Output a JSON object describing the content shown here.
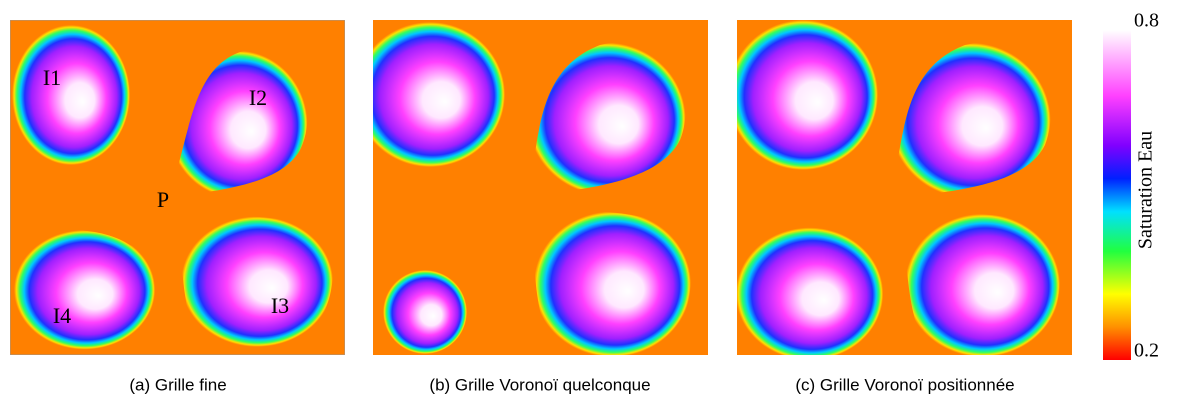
{
  "panels": [
    {
      "caption": "(a) Grille fine",
      "labels": [
        "I1",
        "I2",
        "P",
        "I3",
        "I4"
      ]
    },
    {
      "caption": "(b) Grille Voronoï quelconque"
    },
    {
      "caption": "(c) Grille Voronoï positionnée"
    }
  ],
  "colorbar": {
    "title": "Saturation Eau",
    "max": 0.8,
    "min": 0.2
  }
}
